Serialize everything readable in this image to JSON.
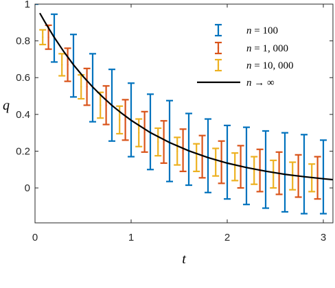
{
  "chart_data": {
    "type": "line",
    "xlabel": "t",
    "ylabel": "q",
    "xlim": [
      0,
      3.1
    ],
    "ylim": [
      -0.19,
      1.0
    ],
    "xticks": [
      0,
      1,
      2,
      3
    ],
    "yticks": [
      0,
      0.2,
      0.4,
      0.6,
      0.8,
      1
    ],
    "xtick_labels": [
      "0",
      "1",
      "2",
      "3"
    ],
    "ytick_labels": [
      "0",
      "0.2",
      "0.4",
      "0.6",
      "0.8",
      "1"
    ],
    "legend_position": "top-right",
    "grid": false,
    "series": [
      {
        "name": "n = 100",
        "style": "errorbar",
        "color": "#0072BD",
        "x": [
          0,
          0.2,
          0.4,
          0.6,
          0.8,
          1.0,
          1.2,
          1.4,
          1.6,
          1.8,
          2.0,
          2.2,
          2.4,
          2.6,
          2.8,
          3.0
        ],
        "y": [
          1.0,
          0.815,
          0.665,
          0.545,
          0.45,
          0.37,
          0.305,
          0.255,
          0.21,
          0.175,
          0.14,
          0.12,
          0.1,
          0.085,
          0.075,
          0.06
        ],
        "err": [
          0.0,
          0.13,
          0.17,
          0.185,
          0.195,
          0.2,
          0.205,
          0.22,
          0.195,
          0.2,
          0.2,
          0.21,
          0.21,
          0.215,
          0.215,
          0.2
        ]
      },
      {
        "name": "n = 1,000",
        "style": "errorbar",
        "color": "#D95319",
        "x": [
          0,
          0.2,
          0.4,
          0.6,
          0.8,
          1.0,
          1.2,
          1.4,
          1.6,
          1.8,
          2.0,
          2.2,
          2.4,
          2.6,
          2.8,
          3.0
        ],
        "y": [
          1.0,
          0.82,
          0.67,
          0.55,
          0.45,
          0.37,
          0.305,
          0.25,
          0.205,
          0.17,
          0.14,
          0.115,
          0.095,
          0.08,
          0.065,
          0.055
        ],
        "err": [
          0.0,
          0.065,
          0.09,
          0.1,
          0.105,
          0.11,
          0.11,
          0.115,
          0.115,
          0.115,
          0.115,
          0.115,
          0.115,
          0.115,
          0.115,
          0.115
        ]
      },
      {
        "name": "n = 10,000",
        "style": "errorbar",
        "color": "#EDB120",
        "x": [
          0,
          0.2,
          0.4,
          0.6,
          0.8,
          1.0,
          1.2,
          1.4,
          1.6,
          1.8,
          2.0,
          2.2,
          2.4,
          2.6,
          2.8,
          3.0
        ],
        "y": [
          1.0,
          0.82,
          0.67,
          0.55,
          0.45,
          0.37,
          0.3,
          0.25,
          0.2,
          0.165,
          0.14,
          0.115,
          0.095,
          0.075,
          0.065,
          0.055
        ],
        "err": [
          0.0,
          0.04,
          0.06,
          0.065,
          0.07,
          0.075,
          0.075,
          0.075,
          0.075,
          0.075,
          0.075,
          0.075,
          0.075,
          0.075,
          0.075,
          0.075
        ]
      },
      {
        "name": "n → ∞",
        "style": "line",
        "color": "#000000",
        "formula": "q = exp(-t)",
        "x": [
          0.05,
          0.1,
          0.2,
          0.3,
          0.4,
          0.5,
          0.6,
          0.7,
          0.8,
          0.9,
          1.0,
          1.2,
          1.4,
          1.6,
          1.8,
          2.0,
          2.2,
          2.4,
          2.6,
          2.8,
          3.0,
          3.1
        ],
        "y": [
          0.951,
          0.905,
          0.819,
          0.741,
          0.67,
          0.607,
          0.549,
          0.497,
          0.449,
          0.407,
          0.368,
          0.301,
          0.247,
          0.202,
          0.165,
          0.135,
          0.111,
          0.091,
          0.074,
          0.061,
          0.05,
          0.045
        ]
      }
    ],
    "legend": [
      {
        "label_parts": [
          "n",
          " = ",
          "100"
        ],
        "color": "#0072BD",
        "marker": "errorbar"
      },
      {
        "label_parts": [
          "n",
          " = ",
          "1, 000"
        ],
        "color": "#D95319",
        "marker": "errorbar"
      },
      {
        "label_parts": [
          "n",
          " = ",
          "10, 000"
        ],
        "color": "#EDB120",
        "marker": "errorbar"
      },
      {
        "label_parts": [
          "n",
          " → ",
          "∞"
        ],
        "color": "#000000",
        "marker": "line"
      }
    ]
  }
}
